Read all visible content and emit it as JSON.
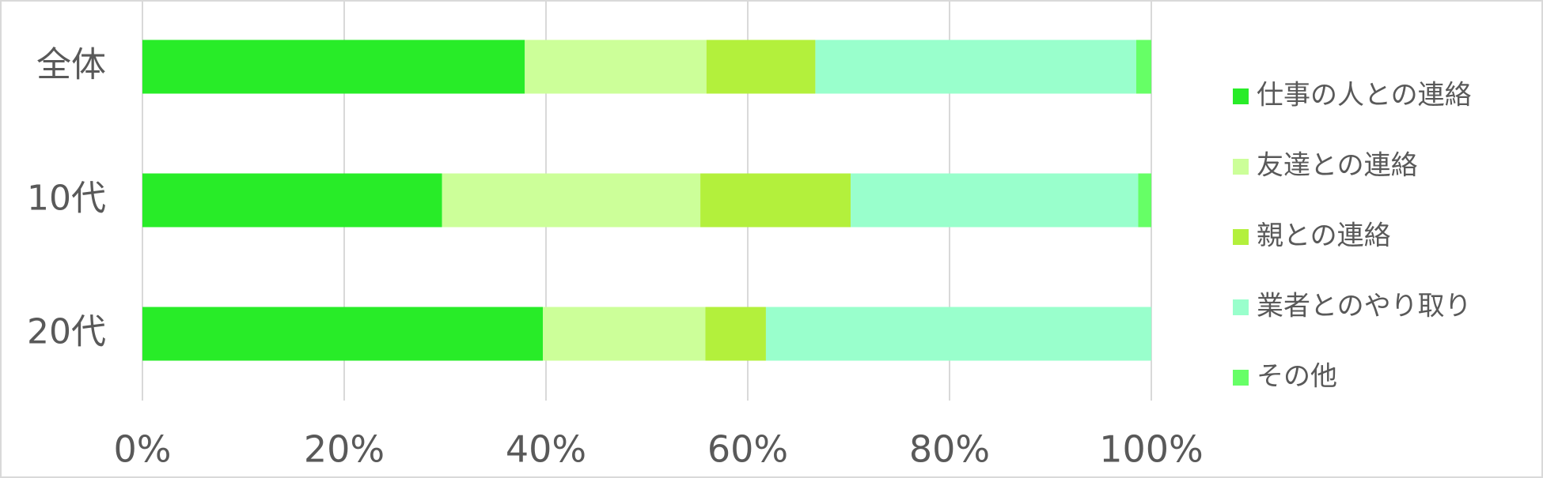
{
  "chart_data": {
    "type": "stacked-bar-horizontal",
    "categories": [
      "全体",
      "10代",
      "20代"
    ],
    "series": [
      {
        "name": "仕事の人との連絡",
        "color": "#28ec28",
        "values": [
          37.9,
          29.7,
          39.7
        ]
      },
      {
        "name": "友達との連絡",
        "color": "#ccff99",
        "values": [
          18.0,
          25.6,
          16.1
        ]
      },
      {
        "name": "親との連絡",
        "color": "#b3f03c",
        "values": [
          10.8,
          14.9,
          6.0
        ]
      },
      {
        "name": "業者とのやり取り",
        "color": "#99ffcc",
        "values": [
          31.8,
          28.5,
          38.2
        ]
      },
      {
        "name": "その他",
        "color": "#66ff66",
        "values": [
          1.5,
          1.3,
          0
        ]
      }
    ],
    "xlim": [
      0,
      100
    ],
    "xticks": [
      {
        "value": 0,
        "label": "0%"
      },
      {
        "value": 20,
        "label": "20%"
      },
      {
        "value": 40,
        "label": "40%"
      },
      {
        "value": 60,
        "label": "60%"
      },
      {
        "value": 80,
        "label": "80%"
      },
      {
        "value": 100,
        "label": "100%"
      }
    ],
    "grid": true,
    "legend": "right"
  }
}
